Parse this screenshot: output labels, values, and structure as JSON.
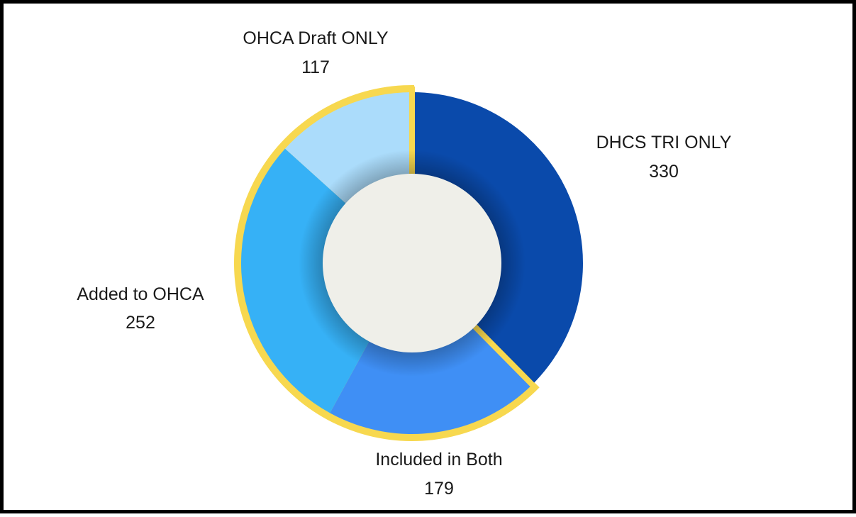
{
  "chart_data": {
    "type": "pie",
    "variant": "donut",
    "title": "",
    "slices": [
      {
        "label": "DHCS TRI ONLY",
        "value": 330,
        "color": "#0a4aab",
        "highlighted": false
      },
      {
        "label": "Included in Both",
        "value": 179,
        "color": "#3f8ff5",
        "highlighted": true
      },
      {
        "label": "Added to OHCA",
        "value": 252,
        "color": "#36b1f6",
        "highlighted": true
      },
      {
        "label": "OHCA Draft ONLY",
        "value": 117,
        "color": "#abdcfb",
        "highlighted": true
      }
    ],
    "highlight_color": "#f7d84f",
    "center_color": "#efefe9",
    "legend": "none",
    "start_angle": "12 o'clock",
    "direction": "clockwise"
  }
}
